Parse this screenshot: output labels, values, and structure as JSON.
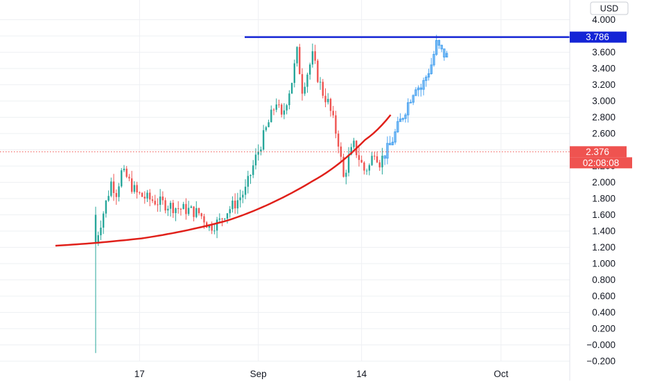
{
  "chart_data": {
    "type": "candlestick",
    "currency": "USD",
    "y_axis": {
      "ticks": [
        "4.000",
        "3.800",
        "3.600",
        "3.400",
        "3.200",
        "3.000",
        "2.800",
        "2.600",
        "2.400",
        "2.200",
        "2.000",
        "1.800",
        "1.600",
        "1.400",
        "1.200",
        "1.000",
        "0.800",
        "0.600",
        "0.400",
        "0.200",
        "−0.000",
        "−0.200"
      ],
      "ylim": [
        -0.2,
        4.0
      ]
    },
    "x_axis": {
      "ticks": [
        "17",
        "Sep",
        "14",
        "Oct"
      ]
    },
    "price_labels": [
      {
        "value": 3.786,
        "text": "3.786",
        "color": "#1424d6"
      },
      {
        "value": 2.376,
        "text": "2.376",
        "color": "#ef5350"
      }
    ],
    "countdown": "02:08:08",
    "resistance_line": {
      "value": 3.786,
      "color": "#1424d6"
    },
    "support_curve": {
      "color": "#e0201a",
      "points": [
        [
          0,
          1.22
        ],
        [
          20,
          1.31
        ],
        [
          40,
          1.53
        ],
        [
          60,
          2.02
        ],
        [
          72,
          2.52
        ],
        [
          78,
          2.83
        ]
      ]
    },
    "colors": {
      "up": "#26a69a",
      "down": "#ef5350",
      "highlight": "#4aa3f0",
      "grid": "#eef0f3"
    },
    "candles": []
  }
}
